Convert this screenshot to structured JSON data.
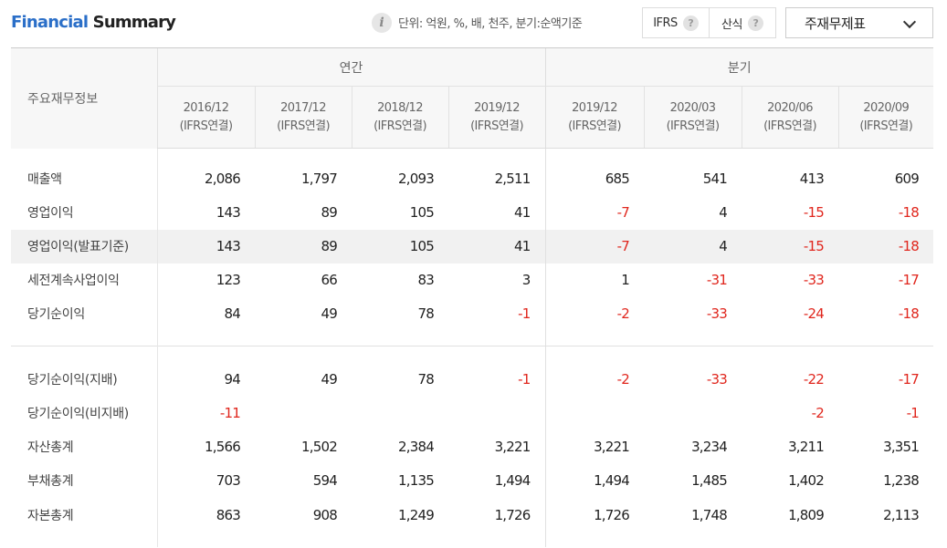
{
  "header": {
    "title_highlight": "Financial",
    "title_rest": " Summary",
    "unit_text": "단위: 억원, %, 배, 천주, 분기:순액기준",
    "toggles": [
      {
        "label": "IFRS",
        "help": "?"
      },
      {
        "label": "산식",
        "help": "?"
      }
    ],
    "statement_select": "주재무제표"
  },
  "table": {
    "row_header_label": "주요재무정보",
    "groups": [
      "연간",
      "분기"
    ],
    "columns": [
      {
        "period": "2016/12",
        "basis": "(IFRS연결)"
      },
      {
        "period": "2017/12",
        "basis": "(IFRS연결)"
      },
      {
        "period": "2018/12",
        "basis": "(IFRS연결)"
      },
      {
        "period": "2019/12",
        "basis": "(IFRS연결)"
      },
      {
        "period": "2019/12",
        "basis": "(IFRS연결)"
      },
      {
        "period": "2020/03",
        "basis": "(IFRS연결)"
      },
      {
        "period": "2020/06",
        "basis": "(IFRS연결)"
      },
      {
        "period": "2020/09",
        "basis": "(IFRS연결)"
      }
    ],
    "section1": [
      {
        "label": "매출액",
        "values": [
          "2,086",
          "1,797",
          "2,093",
          "2,511",
          "685",
          "541",
          "413",
          "609"
        ]
      },
      {
        "label": "영업이익",
        "values": [
          "143",
          "89",
          "105",
          "41",
          "-7",
          "4",
          "-15",
          "-18"
        ]
      },
      {
        "label": "영업이익(발표기준)",
        "values": [
          "143",
          "89",
          "105",
          "41",
          "-7",
          "4",
          "-15",
          "-18"
        ]
      },
      {
        "label": "세전계속사업이익",
        "values": [
          "123",
          "66",
          "83",
          "3",
          "1",
          "-31",
          "-33",
          "-17"
        ]
      },
      {
        "label": "당기순이익",
        "values": [
          "84",
          "49",
          "78",
          "-1",
          "-2",
          "-33",
          "-24",
          "-18"
        ]
      }
    ],
    "section2": [
      {
        "label": "당기순이익(지배)",
        "values": [
          "94",
          "49",
          "78",
          "-1",
          "-2",
          "-33",
          "-22",
          "-17"
        ]
      },
      {
        "label": "당기순이익(비지배)",
        "values": [
          "-11",
          "",
          "",
          "",
          "",
          "",
          "-2",
          "-1"
        ]
      },
      {
        "label": "자산총계",
        "values": [
          "1,566",
          "1,502",
          "2,384",
          "3,221",
          "3,221",
          "3,234",
          "3,211",
          "3,351"
        ]
      },
      {
        "label": "부채총계",
        "values": [
          "703",
          "594",
          "1,135",
          "1,494",
          "1,494",
          "1,485",
          "1,402",
          "1,238"
        ]
      },
      {
        "label": "자본총계",
        "values": [
          "863",
          "908",
          "1,249",
          "1,726",
          "1,726",
          "1,748",
          "1,809",
          "2,113"
        ]
      }
    ],
    "colors": {
      "negative": "#e0261d",
      "accent": "#2b6fc8"
    }
  }
}
